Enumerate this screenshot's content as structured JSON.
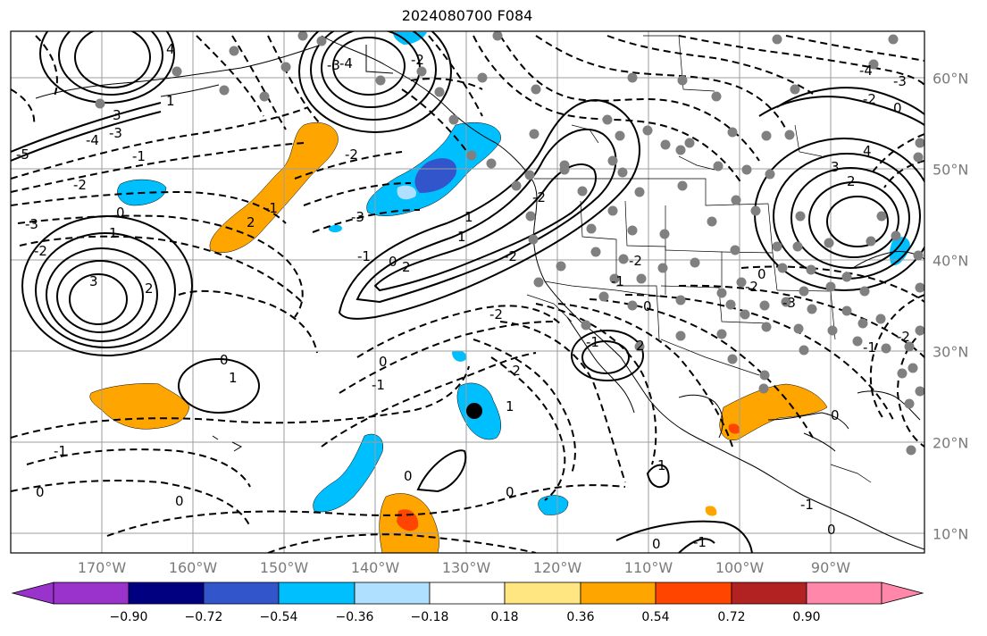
{
  "title": "2024080700 F084",
  "lon_labels": [
    "170°W",
    "160°W",
    "150°W",
    "140°W",
    "130°W",
    "120°W",
    "110°W",
    "100°W",
    "90°W"
  ],
  "lat_labels": [
    "60°N",
    "50°N",
    "40°N",
    "30°N",
    "20°N",
    "10°N"
  ],
  "colorbar": {
    "ticks": [
      "−0.90",
      "−0.72",
      "−0.54",
      "−0.36",
      "−0.18",
      "0.18",
      "0.36",
      "0.54",
      "0.72",
      "0.90"
    ],
    "colors": [
      "#9933cc",
      "#000080",
      "#3355cc",
      "#00bfff",
      "#b0e0ff",
      "#ffffff",
      "#ffe680",
      "#ffa500",
      "#ff4500",
      "#b22222",
      "#ff88aa"
    ]
  },
  "contour_labels": [
    "-5",
    "-4",
    "-3",
    "-2",
    "-1",
    "0",
    "1",
    "2",
    "3",
    "-4",
    "-3",
    "-2",
    "0",
    "4",
    "3",
    "2",
    "1",
    "-3",
    "-2",
    "-1",
    "0",
    "1",
    "2",
    "-2",
    "-1",
    "0",
    "0",
    "-1",
    "-2",
    "1",
    "-2",
    "0",
    "-1",
    "0",
    "1",
    "2",
    "-2",
    "-1",
    "0",
    "-4",
    "-3",
    "-2",
    "0",
    "4",
    "3",
    "-3",
    "-2",
    "-1",
    "0",
    "0",
    "1",
    "-1",
    "0",
    "-1",
    "-2",
    "-2",
    "-3",
    "2",
    "1",
    "0",
    "-2",
    "-1",
    "0"
  ],
  "colors": {
    "frame": "#000000",
    "grid": "#9e9e9e",
    "axis_label": "#7a7a7a",
    "station_dot": "#808080",
    "storm_marker": "#000000"
  }
}
